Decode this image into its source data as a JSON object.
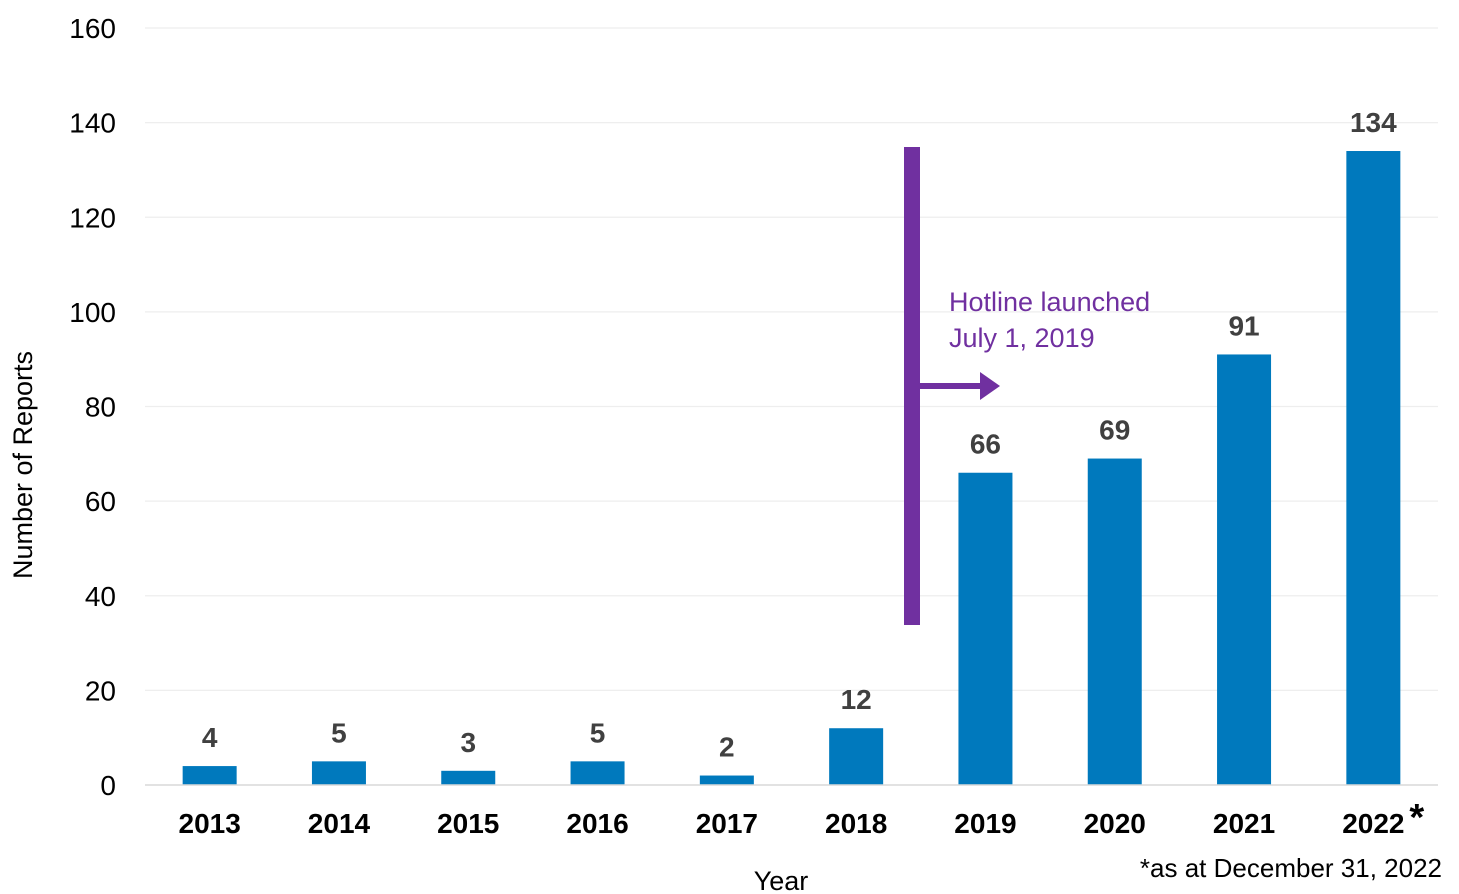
{
  "chart_data": {
    "type": "bar",
    "title": "",
    "xlabel": "Year",
    "ylabel": "Number of Reports",
    "categories": [
      "2013",
      "2014",
      "2015",
      "2016",
      "2017",
      "2018",
      "2019",
      "2020",
      "2021",
      "2022"
    ],
    "values": [
      4,
      5,
      3,
      5,
      2,
      12,
      66,
      69,
      91,
      134
    ],
    "ylim": [
      0,
      160
    ],
    "yticks": [
      0,
      20,
      40,
      60,
      80,
      100,
      120,
      140,
      160
    ],
    "grid": true,
    "legend": "none",
    "bar_color": "#0079BD",
    "annotation": {
      "line1": "Hotline launched",
      "line2": "July 1, 2019",
      "color": "#7030A0"
    },
    "last_category_marker": "*",
    "footnote": "*as at December 31, 2022"
  }
}
